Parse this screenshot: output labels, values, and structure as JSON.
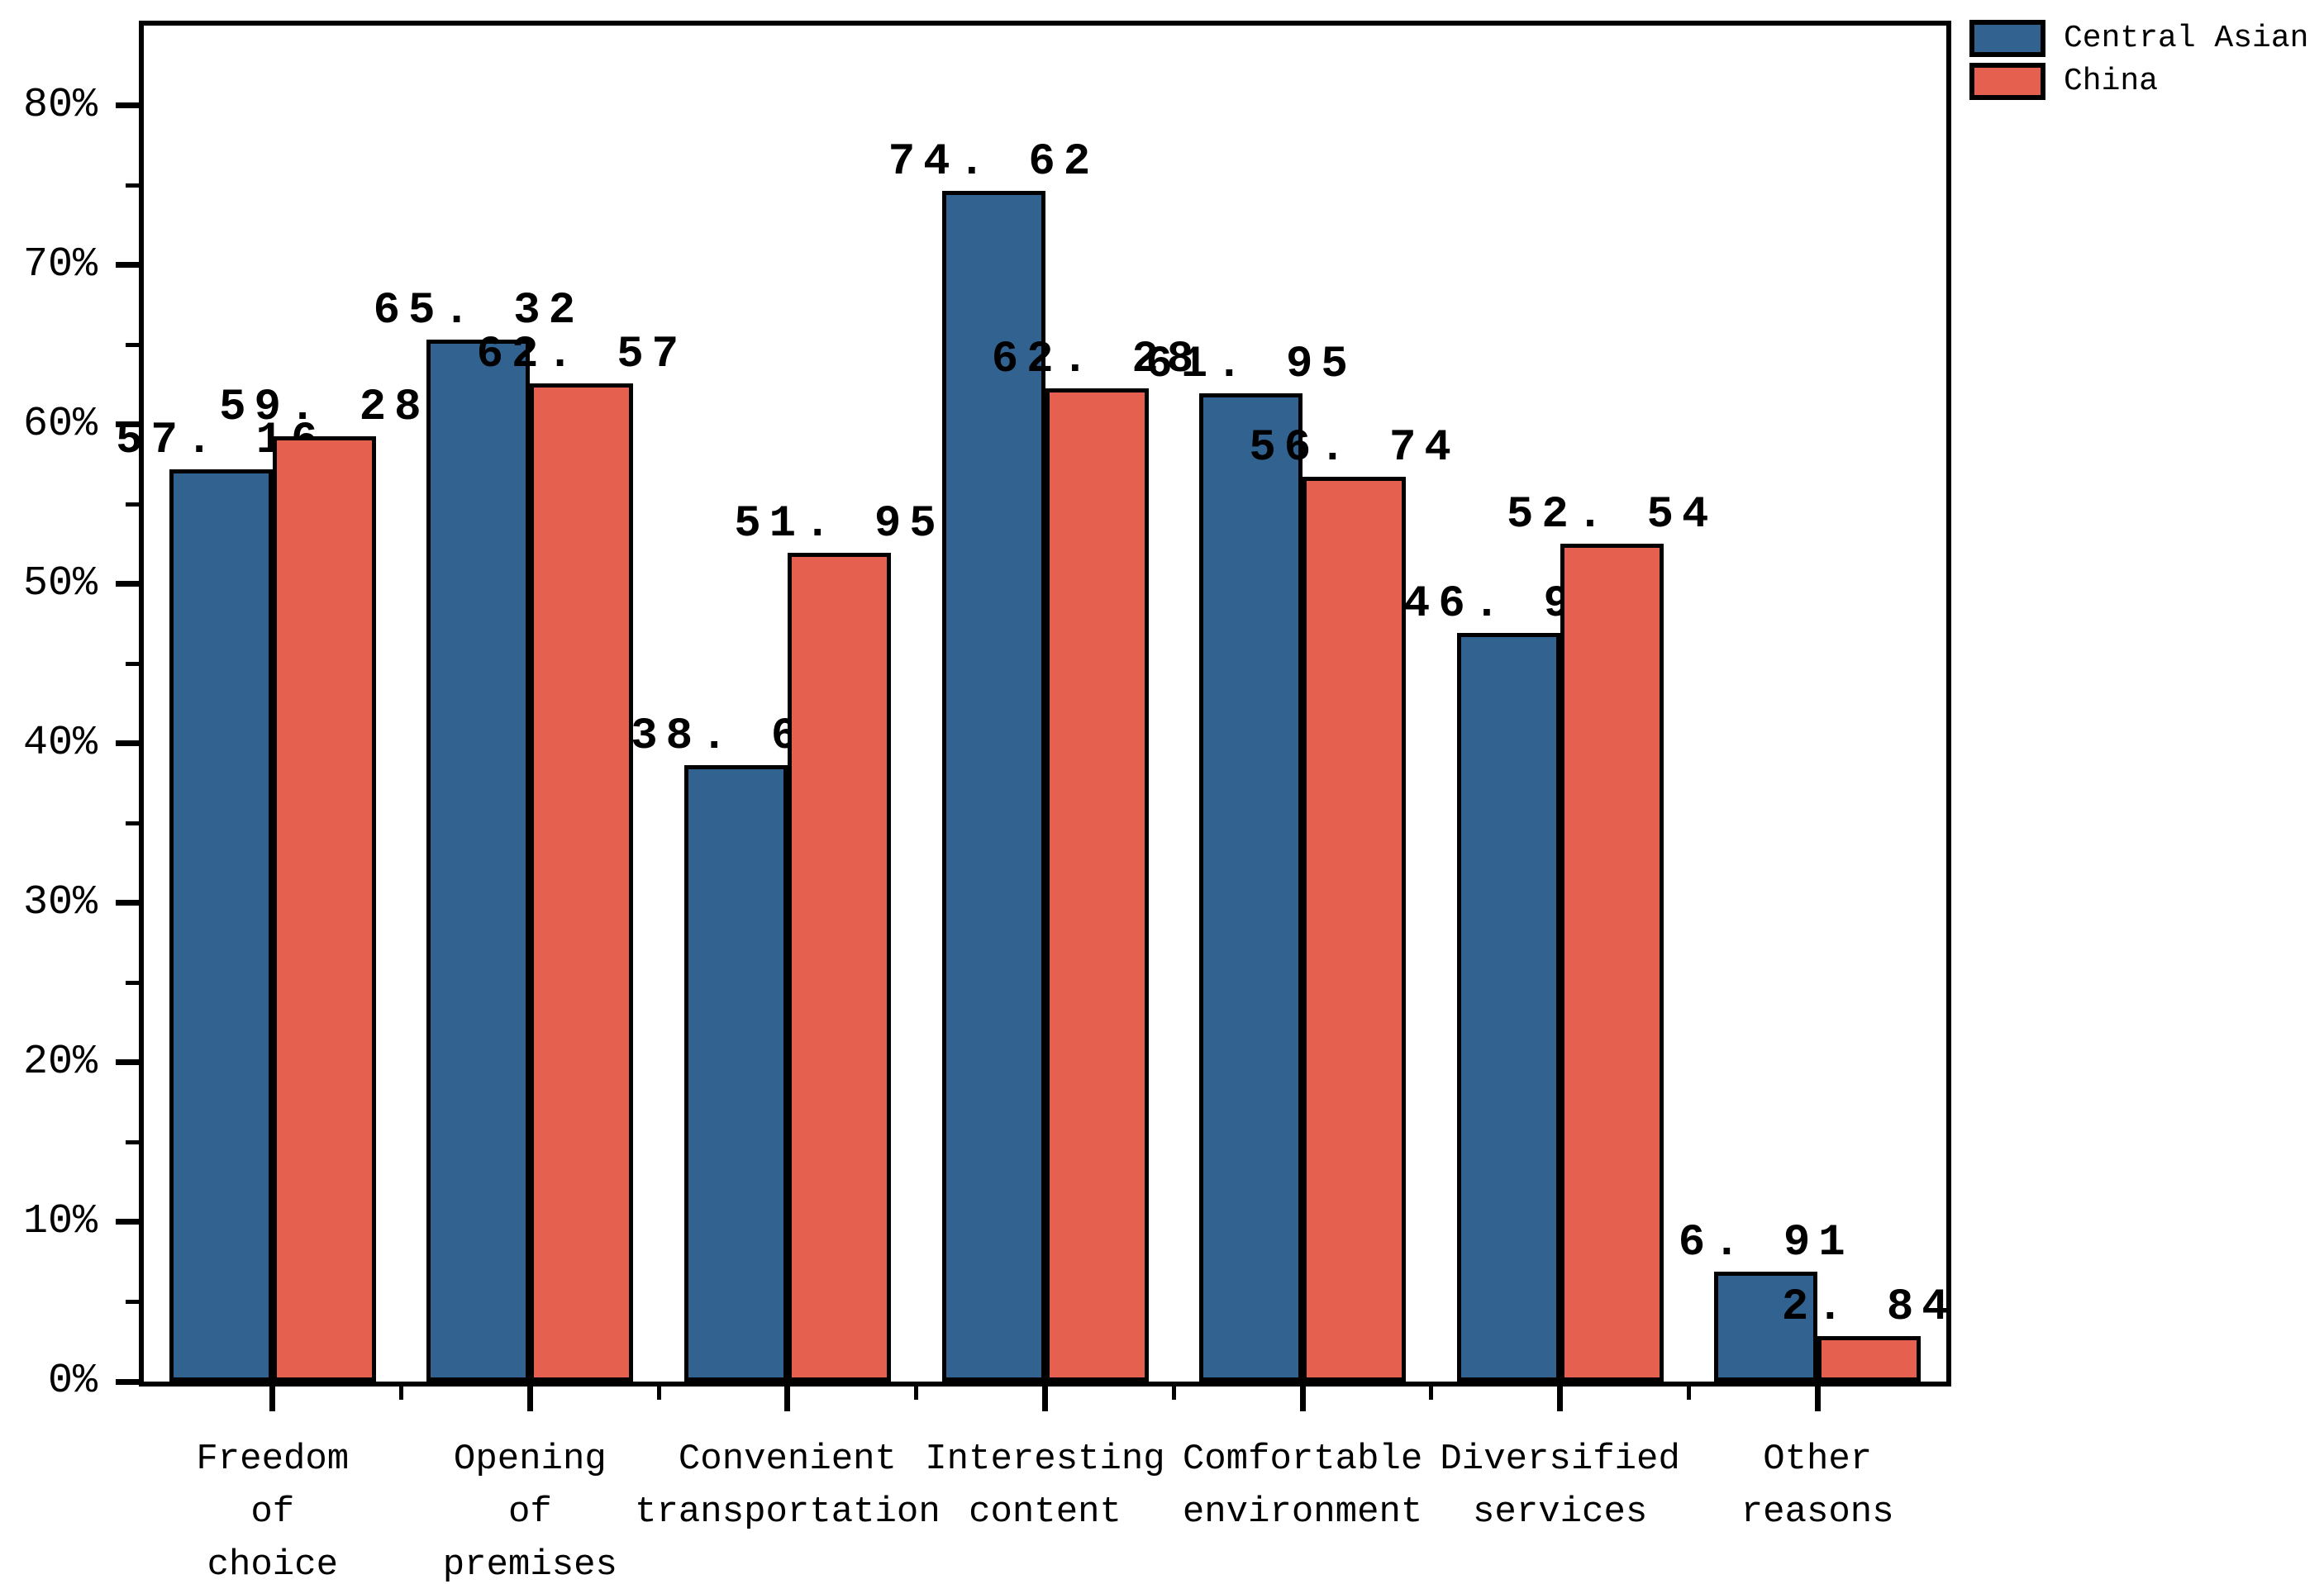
{
  "chart_data": {
    "type": "bar",
    "title": "",
    "xlabel": "",
    "ylabel": "",
    "grid": false,
    "background": "#FFFFFF",
    "bar_edge_color": "#000000",
    "categories": [
      "Freedom\nof\nchoice",
      "Opening\nof\npremises",
      "Convenient\ntransportation",
      "Interesting\ncontent",
      "Comfortable\nenvironment",
      "Diversified\nservices",
      "Other\nreasons"
    ],
    "series": [
      {
        "name": "Central Asian",
        "color": "#316290",
        "values": [
          57.16,
          65.32,
          38.62,
          74.62,
          61.95,
          46.91,
          6.91
        ],
        "value_labels": [
          "57. 16",
          "65. 32",
          "38. 62",
          "74. 62",
          "61. 95",
          "46. 91",
          "6. 91"
        ]
      },
      {
        "name": "China",
        "color": "#E6604F",
        "values": [
          59.28,
          62.57,
          51.95,
          62.28,
          56.74,
          52.54,
          2.84
        ],
        "value_labels": [
          "59. 28",
          "62. 57",
          "51. 95",
          "62. 28",
          "56. 74",
          "52. 54",
          "2. 84"
        ]
      }
    ],
    "y_axis": {
      "tick_values": [
        0,
        10,
        20,
        30,
        40,
        50,
        60,
        70,
        80
      ],
      "tick_labels": [
        "0%",
        "10%",
        "20%",
        "30%",
        "40%",
        "50%",
        "60%",
        "70%",
        "80%"
      ],
      "minor_tick_values": [
        5,
        15,
        25,
        35,
        45,
        55,
        65,
        75
      ],
      "ylim": [
        0,
        85
      ]
    },
    "legend": {
      "position": "upper-right-outside",
      "entries": [
        "Central Asian",
        "China"
      ]
    }
  }
}
